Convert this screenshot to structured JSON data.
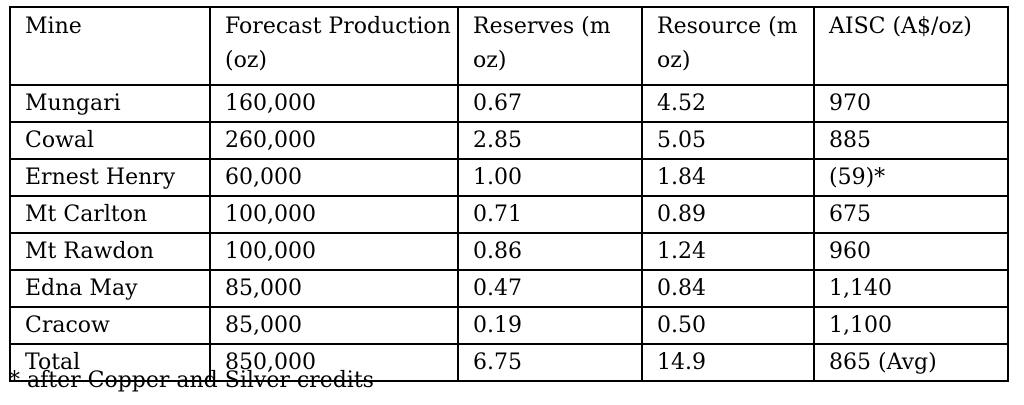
{
  "table": {
    "headers": [
      "Mine",
      "Forecast Production (oz)",
      "Reserves (m oz)",
      "Resource (m oz)",
      "AISC (A$/oz)"
    ],
    "rows": [
      [
        "Mungari",
        "160,000",
        "0.67",
        "4.52",
        "970"
      ],
      [
        "Cowal",
        "260,000",
        "2.85",
        "5.05",
        "885"
      ],
      [
        "Ernest Henry",
        "60,000",
        "1.00",
        "1.84",
        "(59)*"
      ],
      [
        "Mt Carlton",
        "100,000",
        "0.71",
        "0.89",
        "675"
      ],
      [
        "Mt Rawdon",
        "100,000",
        "0.86",
        "1.24",
        "960"
      ],
      [
        "Edna May",
        "85,000",
        "0.47",
        "0.84",
        "1,140"
      ],
      [
        "Cracow",
        "85,000",
        "0.19",
        "0.50",
        "1,100"
      ],
      [
        "Total",
        "850,000",
        "6.75",
        "14.9",
        "865 (Avg)"
      ]
    ]
  },
  "footnote": "* after Copper and Silver credits"
}
